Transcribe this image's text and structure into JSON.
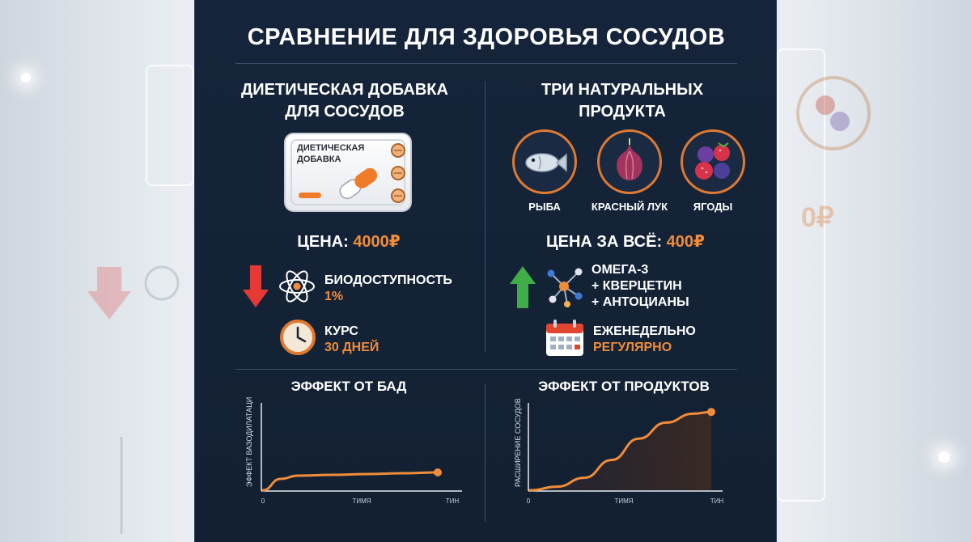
{
  "title": "СРАВНЕНИЕ ДЛЯ ЗДОРОВЬЯ СОСУДОВ",
  "left": {
    "heading_line1": "ДИЕТИЧЕСКАЯ ДОБАВКА",
    "heading_line2": "ДЛЯ СОСУДОВ",
    "pack_label_line1": "ДИЕТИЧЕСКАЯ",
    "pack_label_line2": "ДОБАВКА",
    "price_label": "ЦЕНА:",
    "price_value": "4000₽",
    "bio_label": "БИОДОСТУПНОСТЬ",
    "bio_value": "1%",
    "course_label": "КУРС",
    "course_value": "30 ДНЕЙ",
    "icons": [
      "arrow-down-icon",
      "atom-icon",
      "clock-icon",
      "pill-pack-icon"
    ]
  },
  "right": {
    "heading_line1": "ТРИ НАТУРАЛЬНЫХ",
    "heading_line2": "ПРОДУКТА",
    "foods": [
      {
        "label": "РЫБА",
        "icon": "fish-icon"
      },
      {
        "label": "КРАСНЫЙ ЛУК",
        "icon": "red-onion-icon"
      },
      {
        "label": "ЯГОДЫ",
        "icon": "berries-icon"
      }
    ],
    "price_label": "ЦЕНА ЗА ВСЁ:",
    "price_value": "400₽",
    "nutrients_line1": "ОМЕГА-3",
    "nutrients_line2": "+ КВЕРЦЕТИН",
    "nutrients_line3": "+ АНТОЦИАНЫ",
    "freq_label": "ЕЖЕНЕДЕЛЬНО",
    "freq_value": "РЕГУЛЯРНО",
    "icons": [
      "arrow-up-icon",
      "molecule-icon",
      "calendar-icon"
    ]
  },
  "charts": {
    "left": {
      "title": "ЭФФЕКТ ОТ БАД",
      "ylabel": "ЭФФЕКТ ВАЗОДИЛАТАЦИИ",
      "x_start": "0",
      "x_mid": "ТИМЯ",
      "x_end": "ТИН"
    },
    "right": {
      "title": "ЭФФЕКТ ОТ ПРОДУКТОВ",
      "ylabel": "РАСШИРЕНИЕ СОСУДОВ",
      "x_start": "0",
      "x_mid": "ТИМЯ",
      "x_end": "ТИН"
    }
  },
  "chart_data": [
    {
      "type": "line",
      "title": "ЭФФЕКТ ОТ БАД",
      "ylabel": "ЭФФЕКТ ВАЗОДИЛАТАЦИИ",
      "x": [
        0,
        0.1,
        0.2,
        0.4,
        0.6,
        0.8,
        1
      ],
      "y": [
        0,
        0.14,
        0.18,
        0.19,
        0.2,
        0.21,
        0.22
      ]
    },
    {
      "type": "area",
      "title": "ЭФФЕКТ ОТ ПРОДУКТОВ",
      "ylabel": "РАСШИРЕНИЕ СОСУДОВ",
      "x": [
        0,
        0.15,
        0.3,
        0.45,
        0.6,
        0.75,
        0.9,
        1
      ],
      "y": [
        0,
        0.04,
        0.14,
        0.34,
        0.58,
        0.76,
        0.86,
        0.88
      ]
    }
  ],
  "colors": {
    "panel_bg": "#15243a",
    "accent": "#f08c3a",
    "arrow_down": "#e53935",
    "arrow_up": "#3fae49"
  }
}
